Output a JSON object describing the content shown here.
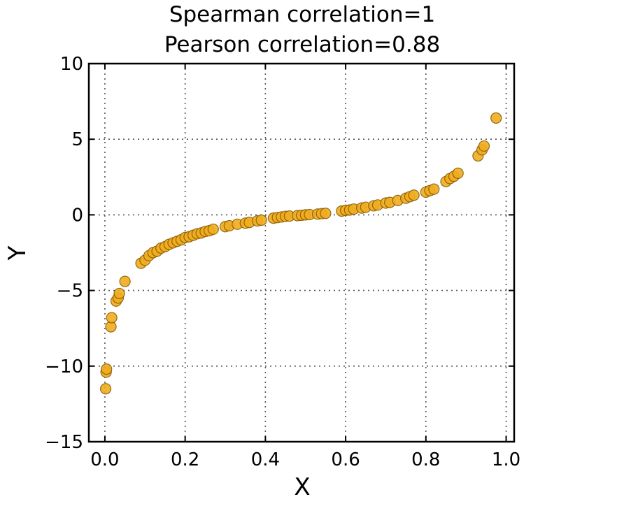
{
  "chart_data": {
    "type": "scatter",
    "title": [
      "Spearman correlation=1",
      "Pearson correlation=0.88"
    ],
    "xlabel": "X",
    "ylabel": "Y",
    "xlim": [
      -0.04,
      1.02
    ],
    "ylim": [
      -15,
      10
    ],
    "xticks": [
      0.0,
      0.2,
      0.4,
      0.6,
      0.8,
      1.0
    ],
    "xtick_labels": [
      "0.0",
      "0.2",
      "0.4",
      "0.6",
      "0.8",
      "1.0"
    ],
    "yticks": [
      10,
      5,
      0,
      -5,
      -10,
      -15
    ],
    "ytick_labels": [
      "10",
      "5",
      "0",
      "−5",
      "−10",
      "−15"
    ],
    "grid": true,
    "marker_color": "#f0ad1e",
    "series": [
      {
        "x": [
          0.002,
          0.003,
          0.004,
          0.015,
          0.017,
          0.028,
          0.033,
          0.036,
          0.05,
          0.09,
          0.1,
          0.11,
          0.12,
          0.13,
          0.14,
          0.15,
          0.16,
          0.17,
          0.18,
          0.19,
          0.2,
          0.21,
          0.22,
          0.23,
          0.24,
          0.25,
          0.26,
          0.27,
          0.3,
          0.31,
          0.33,
          0.35,
          0.36,
          0.38,
          0.39,
          0.42,
          0.43,
          0.44,
          0.45,
          0.46,
          0.48,
          0.49,
          0.5,
          0.51,
          0.53,
          0.54,
          0.55,
          0.59,
          0.6,
          0.61,
          0.62,
          0.64,
          0.65,
          0.67,
          0.68,
          0.7,
          0.71,
          0.73,
          0.75,
          0.76,
          0.77,
          0.8,
          0.81,
          0.82,
          0.85,
          0.86,
          0.87,
          0.88,
          0.93,
          0.94,
          0.945,
          0.975
        ],
        "y": [
          -11.5,
          -10.4,
          -10.2,
          -7.4,
          -6.8,
          -5.7,
          -5.5,
          -5.2,
          -4.4,
          -3.2,
          -3.0,
          -2.7,
          -2.5,
          -2.4,
          -2.2,
          -2.1,
          -1.95,
          -1.85,
          -1.75,
          -1.65,
          -1.5,
          -1.45,
          -1.35,
          -1.25,
          -1.2,
          -1.1,
          -1.05,
          -0.95,
          -0.78,
          -0.72,
          -0.62,
          -0.55,
          -0.5,
          -0.4,
          -0.35,
          -0.22,
          -0.18,
          -0.14,
          -0.1,
          -0.08,
          -0.05,
          -0.03,
          0.0,
          0.02,
          0.05,
          0.08,
          0.1,
          0.25,
          0.3,
          0.32,
          0.38,
          0.45,
          0.5,
          0.6,
          0.65,
          0.78,
          0.82,
          0.95,
          1.1,
          1.2,
          1.3,
          1.5,
          1.6,
          1.7,
          2.2,
          2.4,
          2.55,
          2.75,
          3.9,
          4.3,
          4.55,
          6.4
        ]
      }
    ]
  }
}
